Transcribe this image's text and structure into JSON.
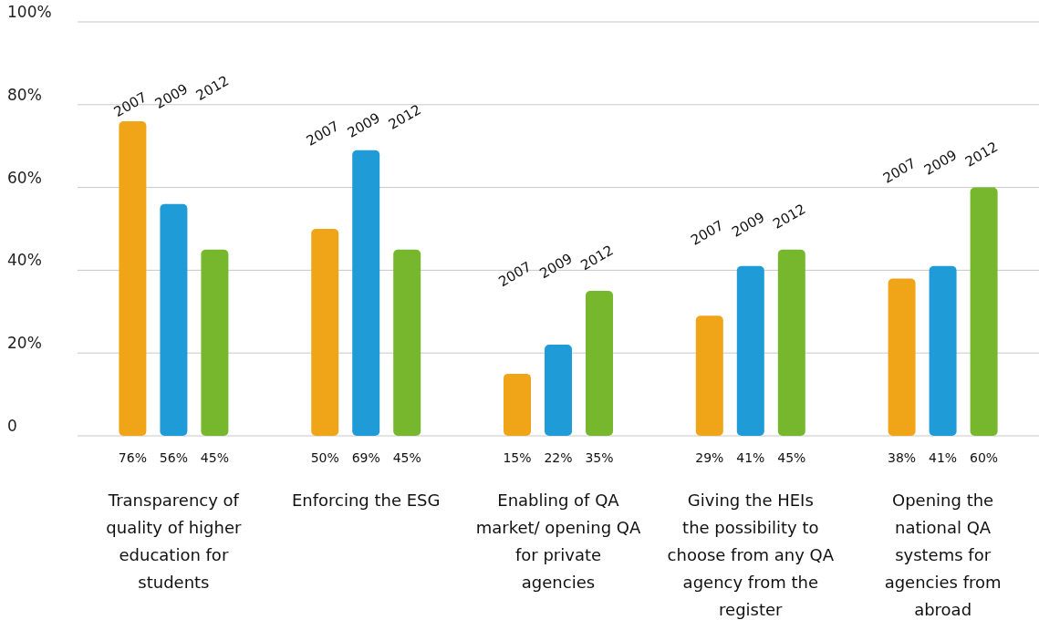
{
  "chart_data": {
    "type": "bar",
    "categories": [
      "Transparency of quality of higher education for students",
      "Enforcing the ESG",
      "Enabling of QA market/ opening QA for private agencies",
      "Giving the HEIs the possibility to choose from any QA agency from the register",
      "Opening the national QA systems for agencies from abroad"
    ],
    "series": [
      {
        "name": "2007",
        "color": "#f0a519",
        "values": [
          76,
          50,
          15,
          29,
          38
        ],
        "value_labels": [
          "76%",
          "50%",
          "15%",
          "29%",
          "38%"
        ]
      },
      {
        "name": "2009",
        "color": "#1f9bd7",
        "values": [
          56,
          69,
          22,
          41,
          41
        ],
        "value_labels": [
          "56%",
          "69%",
          "22%",
          "41%",
          "41%"
        ]
      },
      {
        "name": "2012",
        "color": "#77b72d",
        "values": [
          45,
          45,
          35,
          45,
          60
        ],
        "value_labels": [
          "45%",
          "45%",
          "35%",
          "45%",
          "60%"
        ]
      }
    ],
    "ylim": [
      0,
      100
    ],
    "yticks": [
      0,
      {
        "value": 20,
        "label": "20%"
      },
      {
        "value": 40,
        "label": "40%"
      },
      {
        "value": 60,
        "label": "60%"
      },
      {
        "value": 80,
        "label": "80%"
      },
      {
        "value": 100,
        "label": "100%"
      }
    ],
    "grid": "y"
  }
}
